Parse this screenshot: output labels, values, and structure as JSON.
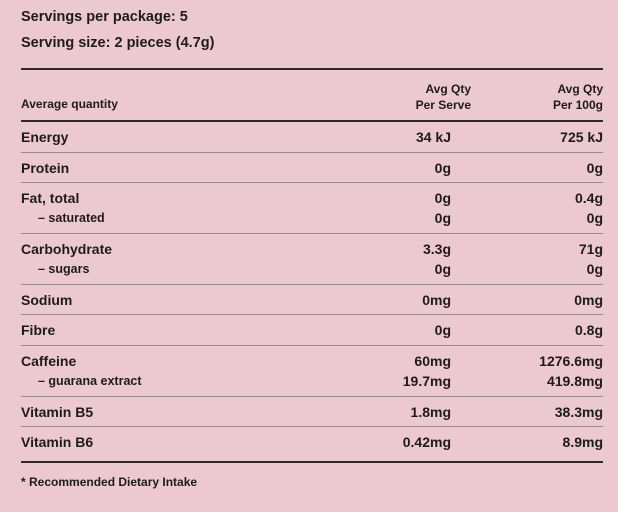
{
  "servings_line": "Servings per package: 5",
  "serving_size_line": "Serving size: 2 pieces (4.7g)",
  "header": {
    "average_quantity": "Average quantity",
    "per_serve_line1": "Avg Qty",
    "per_serve_line2": "Per Serve",
    "per_100g_line1": "Avg Qty",
    "per_100g_line2": "Per 100g"
  },
  "rows": [
    {
      "label": "Energy",
      "per_serve": "34 kJ",
      "per_100g": "725 kJ"
    },
    {
      "label": "Protein",
      "per_serve": "0g",
      "per_100g": "0g"
    },
    {
      "label": "Fat, total",
      "per_serve": "0g",
      "per_100g": "0.4g",
      "sub_label": "– saturated",
      "sub_per_serve": "0g",
      "sub_per_100g": "0g"
    },
    {
      "label": "Carbohydrate",
      "per_serve": "3.3g",
      "per_100g": "71g",
      "sub_label": "– sugars",
      "sub_per_serve": "0g",
      "sub_per_100g": "0g"
    },
    {
      "label": "Sodium",
      "per_serve": "0mg",
      "per_100g": "0mg"
    },
    {
      "label": "Fibre",
      "per_serve": "0g",
      "per_100g": "0.8g"
    },
    {
      "label": "Caffeine",
      "per_serve": "60mg",
      "per_100g": "1276.6mg",
      "sub_label": "– guarana extract",
      "sub_per_serve": "19.7mg",
      "sub_per_100g": "419.8mg"
    },
    {
      "label": "Vitamin B5",
      "per_serve": "1.8mg",
      "per_100g": "38.3mg"
    },
    {
      "label": "Vitamin B6",
      "per_serve": "0.42mg",
      "per_100g": "8.9mg"
    }
  ],
  "footnote": "* Recommended Dietary Intake"
}
